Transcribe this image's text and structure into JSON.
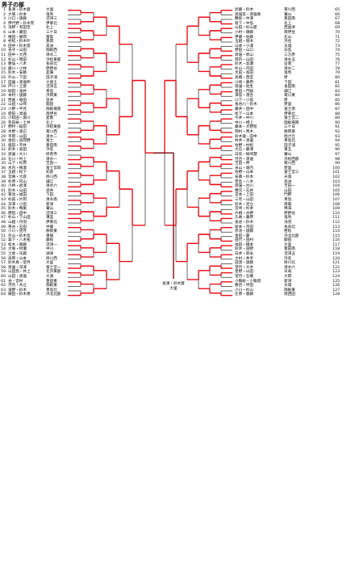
{
  "page": {
    "title": "男子の部"
  },
  "champion": {
    "line1": "長澤・鈴木賀",
    "line2": "大里"
  },
  "left_entries": [
    {
      "num": "1",
      "name": "長澤・鈴木賀",
      "team": "大里"
    },
    {
      "num": "2",
      "name": "大場・杉本",
      "team": "鬼馬"
    },
    {
      "num": "3",
      "name": "川口・遠藤",
      "team": "沼津三"
    },
    {
      "num": "4",
      "name": "伊代野・鈴木晃",
      "team": "伊東北"
    },
    {
      "num": "5",
      "name": "浅野・有田空",
      "team": "北上"
    },
    {
      "num": "6",
      "name": "山本・藤田",
      "team": "三ケ日"
    },
    {
      "num": "7",
      "name": "椎田・飯岡",
      "team": "葉梨"
    },
    {
      "num": "8",
      "name": "村松・鈴木叶",
      "team": "豊岡"
    },
    {
      "num": "9",
      "name": "田中・鈴木悠",
      "team": "高洲"
    },
    {
      "num": "10",
      "name": "谷守・山田",
      "team": "御殿西"
    },
    {
      "num": "11",
      "name": "田中・大西",
      "team": "清水二"
    },
    {
      "num": "12",
      "name": "杉山・岡田",
      "team": "浜松東部"
    },
    {
      "num": "13",
      "name": "勝俣・八木",
      "team": "長泉北"
    },
    {
      "num": "14",
      "name": "藤川・小林",
      "team": "原野谷"
    },
    {
      "num": "15",
      "name": "鈴木・安藤",
      "team": "韮細"
    },
    {
      "num": "16",
      "name": "外山・下田",
      "team": "田子浦"
    },
    {
      "num": "17",
      "name": "田邊・渡邉伸",
      "team": "大富士"
    },
    {
      "num": "18",
      "name": "戸川・土屋",
      "team": "沼津五"
    },
    {
      "num": "19",
      "name": "堀田・滝井",
      "team": "青島"
    },
    {
      "num": "20",
      "name": "本村・遠藤",
      "team": "浜岡東"
    },
    {
      "num": "21",
      "name": "西尾・堀田",
      "team": "笠井"
    },
    {
      "num": "22",
      "name": "山田・山崎",
      "team": "稲田"
    },
    {
      "num": "23",
      "name": "小野・平見",
      "team": "御殿場南"
    },
    {
      "num": "24",
      "name": "肥田・渡邉",
      "team": "南伊豆"
    },
    {
      "num": "25",
      "name": "小松田・堀川",
      "team": "愛鷹"
    },
    {
      "num": "26",
      "name": "有田裕・土井",
      "team": "北上"
    },
    {
      "num": "27",
      "name": "野村・稲垣",
      "team": "浜松東部"
    },
    {
      "num": "28",
      "name": "木野・渡辺",
      "team": "菊川西"
    },
    {
      "num": "29",
      "name": "平岡・山田",
      "team": "清水二"
    },
    {
      "num": "30",
      "name": "金指・島岡野",
      "team": "富士"
    },
    {
      "num": "31",
      "name": "塩田・平井",
      "team": "豊田南"
    },
    {
      "num": "32",
      "name": "鈴木・高田",
      "team": "浜名"
    },
    {
      "num": "33",
      "name": "渡邊・大川",
      "team": "修善寺"
    },
    {
      "num": "34",
      "name": "石川・村上",
      "team": "清水一"
    },
    {
      "num": "35",
      "name": "山下・杉原",
      "team": "吉田一"
    },
    {
      "num": "36",
      "name": "木内・梅澤",
      "team": "富士宮四"
    },
    {
      "num": "37",
      "name": "玉越・松下",
      "team": "初倉"
    },
    {
      "num": "38",
      "name": "宮嶋・大庭",
      "team": "掛川西"
    },
    {
      "num": "39",
      "name": "杉原・内山",
      "team": "細江"
    },
    {
      "num": "40",
      "name": "小林・倉澤",
      "team": "清水六"
    },
    {
      "num": "41",
      "name": "鈴木・山田",
      "team": "袋井"
    },
    {
      "num": "42",
      "name": "菊池・福田",
      "team": "下田"
    },
    {
      "num": "43",
      "name": "杉森・片岡",
      "team": "清水南"
    },
    {
      "num": "44",
      "name": "深澤・小田",
      "team": "新津"
    },
    {
      "num": "45",
      "name": "鈴木・鳴尾",
      "team": "鷲山"
    },
    {
      "num": "46",
      "name": "野田・田中",
      "team": "沼津三"
    },
    {
      "num": "47",
      "name": "杉山・下山田",
      "team": "薄韮"
    },
    {
      "num": "48",
      "name": "山越・丹羽",
      "team": "伊東北"
    },
    {
      "num": "49",
      "name": "茶谷・石田",
      "team": "中郷"
    },
    {
      "num": "50",
      "name": "小川・望月",
      "team": "静岡東"
    },
    {
      "num": "51",
      "name": "外山・鈴木亮",
      "team": "東陽"
    },
    {
      "num": "52",
      "name": "森下・八木拓",
      "team": "藤枝"
    },
    {
      "num": "53",
      "name": "松木・齋藤",
      "team": "沼津一"
    },
    {
      "num": "54",
      "name": "大塚・村瀬",
      "team": "中川"
    },
    {
      "num": "55",
      "name": "土屋・氏藤",
      "team": "湖津"
    },
    {
      "num": "56",
      "name": "高際・山本",
      "team": "掛川西"
    },
    {
      "num": "57",
      "name": "鈴木真・望月",
      "team": "大里"
    },
    {
      "num": "58",
      "name": "渡邊・深澤",
      "team": "富士宮一"
    },
    {
      "num": "59",
      "name": "山田悠・井上",
      "team": "北浜東部"
    },
    {
      "num": "60",
      "name": "山田・渡邉",
      "team": "大淵"
    },
    {
      "num": "61",
      "name": "谷・宮村",
      "team": "豊田東"
    },
    {
      "num": "62",
      "name": "河内・木立",
      "team": "御殿東"
    },
    {
      "num": "63",
      "name": "濱野・鈴木",
      "team": "青島北"
    },
    {
      "num": "64",
      "name": "織田・鈴木勇",
      "team": "浜北北部"
    }
  ],
  "right_entries": [
    {
      "num": "65",
      "name": "武藤・鈴木",
      "team": "菊川西"
    },
    {
      "num": "66",
      "name": "渡邉友・渡邉春",
      "team": "鷲山"
    },
    {
      "num": "67",
      "name": "鶴坂・中澤",
      "team": "豊田南"
    },
    {
      "num": "68",
      "name": "坂下・中島",
      "team": "北上"
    },
    {
      "num": "69",
      "name": "山田・杉山愛",
      "team": "西益津"
    },
    {
      "num": "70",
      "name": "小村・頭藤",
      "team": "南伊豆"
    },
    {
      "num": "71",
      "name": "伊藤・佐藤",
      "team": "北山"
    },
    {
      "num": "72",
      "name": "玉越・堀木",
      "team": "浜名"
    },
    {
      "num": "73",
      "name": "山本・小澤",
      "team": "天城"
    },
    {
      "num": "74",
      "name": "野田・山口",
      "team": "日島"
    },
    {
      "num": "75",
      "name": "渡邉・新山",
      "team": "三方原"
    },
    {
      "num": "76",
      "name": "岡内・山田",
      "team": "清水五"
    },
    {
      "num": "77",
      "name": "鈴木・高瀬",
      "team": "岳南"
    },
    {
      "num": "78",
      "name": "杉山・内田",
      "team": "清水二"
    },
    {
      "num": "79",
      "name": "太田・長田",
      "team": "鬼馬"
    },
    {
      "num": "80",
      "name": "高橋・西室",
      "team": "原"
    },
    {
      "num": "81",
      "name": "川崎・藤原",
      "team": "下田"
    },
    {
      "num": "82",
      "name": "渡邊・佐生",
      "team": "長田南"
    },
    {
      "num": "83",
      "name": "豊田・門脇",
      "team": "細江"
    },
    {
      "num": "84",
      "name": "澤島・落合",
      "team": "菊川東"
    },
    {
      "num": "85",
      "name": "川下・小島",
      "team": "原"
    },
    {
      "num": "86",
      "name": "長谷川・鈴木",
      "team": "原里"
    },
    {
      "num": "87",
      "name": "藤井・田中",
      "team": "富士南"
    },
    {
      "num": "88",
      "name": "松下・山本",
      "team": "伊東北"
    },
    {
      "num": "89",
      "name": "今井・中川",
      "team": "富士宮二"
    },
    {
      "num": "90",
      "name": "中川・相上",
      "team": "御殿場南"
    },
    {
      "num": "91",
      "name": "藤本・大野陸",
      "team": "三ケ日"
    },
    {
      "num": "92",
      "name": "岡村・青木",
      "team": "静岡東"
    },
    {
      "num": "93",
      "name": "鈴木瀧・田中",
      "team": "旭が丘"
    },
    {
      "num": "94",
      "name": "村井・渡邊",
      "team": "青島北"
    },
    {
      "num": "95",
      "name": "佐野・村松",
      "team": "田子浦"
    },
    {
      "num": "96",
      "name": "大石・藤澤",
      "team": "東玉"
    },
    {
      "num": "97",
      "name": "白鳥・植崎慧",
      "team": "鷲山"
    },
    {
      "num": "98",
      "name": "河合・渡邉",
      "team": "浜松西部"
    },
    {
      "num": "99",
      "name": "吉田・神",
      "team": "菊川西"
    },
    {
      "num": "100",
      "name": "米山・堀内",
      "team": "原里"
    },
    {
      "num": "101",
      "name": "佐野・山本",
      "team": "富士宮三"
    },
    {
      "num": "102",
      "name": "安藤・鈴木",
      "team": "天城"
    },
    {
      "num": "103",
      "name": "若島・八木",
      "team": "高洲"
    },
    {
      "num": "104",
      "name": "渡邊・古川",
      "team": "吉田一"
    },
    {
      "num": "105",
      "name": "穂元・石井",
      "team": "山田"
    },
    {
      "num": "106",
      "name": "宮本・上田",
      "team": "門野"
    },
    {
      "num": "107",
      "name": "三宅・山田",
      "team": "青島"
    },
    {
      "num": "108",
      "name": "鈴木・足立",
      "team": "南陽"
    },
    {
      "num": "109",
      "name": "宮崎・杉本",
      "team": "鳴海"
    },
    {
      "num": "110",
      "name": "片桐・水野",
      "team": "原野谷"
    },
    {
      "num": "111",
      "name": "久嶋・藤原",
      "team": "鬼馬"
    },
    {
      "num": "112",
      "name": "長谷・鈴木",
      "team": "浅羽"
    },
    {
      "num": "113",
      "name": "坂本・内田",
      "team": "長泉北"
    },
    {
      "num": "114",
      "name": "赤池・遠藤",
      "team": "岩松"
    },
    {
      "num": "115",
      "name": "金田・藤",
      "team": "浜北北部"
    },
    {
      "num": "116",
      "name": "田代・田村",
      "team": "額田"
    },
    {
      "num": "117",
      "name": "福田・橋本",
      "team": "大里"
    },
    {
      "num": "118",
      "name": "鈴木・田野",
      "team": "豊田南"
    },
    {
      "num": "119",
      "name": "日井・新米",
      "team": "沼津五"
    },
    {
      "num": "120",
      "name": "大村・井手",
      "team": "浜名"
    },
    {
      "num": "121",
      "name": "田渡・遠藤",
      "team": "掛川北"
    },
    {
      "num": "122",
      "name": "望月・大木",
      "team": "清水六"
    },
    {
      "num": "123",
      "name": "星野・山田",
      "team": "天竜"
    },
    {
      "num": "124",
      "name": "望月・石橋",
      "team": "大岡"
    },
    {
      "num": "125",
      "name": "小鞠紋・小鞠悠",
      "team": "新津"
    },
    {
      "num": "126",
      "name": "勝呂・坪田",
      "team": "天城"
    },
    {
      "num": "127",
      "name": "小川・杉山",
      "team": "御殿東"
    },
    {
      "num": "128",
      "name": "辻原・齋藤",
      "team": "焼西田"
    }
  ],
  "colors": {
    "winner_path": "#e8101a",
    "loser_path": "#000000"
  }
}
